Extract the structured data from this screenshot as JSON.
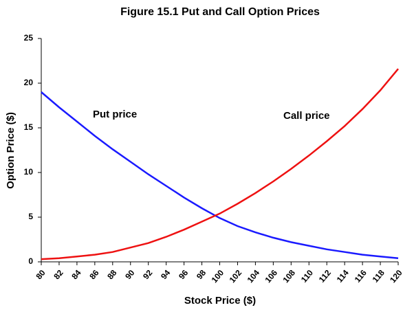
{
  "chart_data": {
    "type": "line",
    "title": "Figure 15.1  Put and Call Option Prices",
    "xlabel": "Stock Price ($)",
    "ylabel": "Option Price ($)",
    "x": [
      80,
      82,
      84,
      86,
      88,
      90,
      92,
      94,
      96,
      98,
      100,
      102,
      104,
      106,
      108,
      110,
      112,
      114,
      116,
      118,
      120
    ],
    "series": [
      {
        "name": "Put price",
        "color": "#1a1aff",
        "values": [
          19.0,
          17.3,
          15.7,
          14.1,
          12.6,
          11.2,
          9.8,
          8.5,
          7.2,
          6.0,
          4.9,
          4.0,
          3.3,
          2.7,
          2.2,
          1.8,
          1.4,
          1.1,
          0.8,
          0.6,
          0.4
        ]
      },
      {
        "name": "Call price",
        "color": "#ee1111",
        "values": [
          0.3,
          0.4,
          0.6,
          0.8,
          1.1,
          1.6,
          2.1,
          2.8,
          3.6,
          4.5,
          5.4,
          6.5,
          7.7,
          9.0,
          10.4,
          11.9,
          13.5,
          15.2,
          17.1,
          19.2,
          21.6
        ]
      }
    ],
    "xlim": [
      80,
      120
    ],
    "xticks": [
      80,
      82,
      84,
      86,
      88,
      90,
      92,
      94,
      96,
      98,
      100,
      102,
      104,
      106,
      108,
      110,
      112,
      114,
      116,
      118,
      120
    ],
    "ylim": [
      0,
      25
    ],
    "yticks": [
      0,
      5,
      10,
      15,
      20,
      25
    ],
    "grid": false
  }
}
